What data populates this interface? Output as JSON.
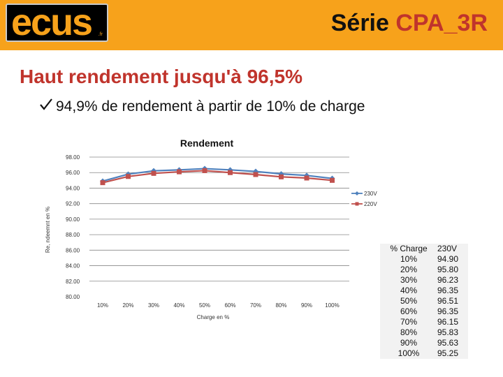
{
  "header": {
    "logo_text": "ecus",
    "logo_suffix": ".fr",
    "title_prefix": "Série ",
    "title_accent": "CPA_3R"
  },
  "headline": "Haut rendement jusqu'à 96,5%",
  "bullet": {
    "icon": "check-icon",
    "text": "94,9% de rendement à partir de 10% de charge"
  },
  "colors": {
    "header_bg": "#f7a21b",
    "headline": "#c0342c",
    "series_230v": "#4f81bd",
    "series_220v": "#c0504d"
  },
  "chart_data": {
    "type": "line",
    "title": "Rendement",
    "xlabel": "Charge en %",
    "ylabel": "Re, ndeemnt en %",
    "categories": [
      "10%",
      "20%",
      "30%",
      "40%",
      "50%",
      "60%",
      "70%",
      "80%",
      "90%",
      "100%"
    ],
    "y_ticks": [
      "98.00",
      "96.00",
      "94.00",
      "92.00",
      "90.00",
      "88.00",
      "86.00",
      "84.00",
      "82.00",
      "80.00"
    ],
    "ylim": [
      80,
      98
    ],
    "grid": true,
    "legend": "right",
    "series": [
      {
        "name": "230V",
        "color": "#4f81bd",
        "marker": "diamond",
        "values": [
          94.9,
          95.8,
          96.23,
          96.35,
          96.51,
          96.35,
          96.15,
          95.83,
          95.63,
          95.25
        ]
      },
      {
        "name": "220V",
        "color": "#c0504d",
        "marker": "square",
        "values": [
          94.7,
          95.5,
          95.9,
          96.1,
          96.25,
          96.0,
          95.75,
          95.45,
          95.3,
          95.0
        ]
      }
    ],
    "table": {
      "header": [
        "% Charge",
        "230V"
      ],
      "rows": [
        [
          "10%",
          "94.90"
        ],
        [
          "20%",
          "95.80"
        ],
        [
          "30%",
          "96.23"
        ],
        [
          "40%",
          "96.35"
        ],
        [
          "50%",
          "96.51"
        ],
        [
          "60%",
          "96.35"
        ],
        [
          "70%",
          "96.15"
        ],
        [
          "80%",
          "95.83"
        ],
        [
          "90%",
          "95.63"
        ],
        [
          "100%",
          "95.25"
        ]
      ]
    }
  }
}
